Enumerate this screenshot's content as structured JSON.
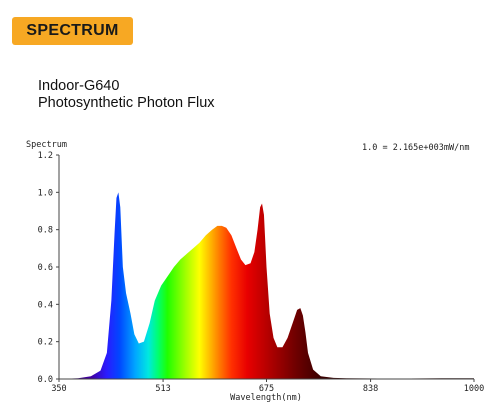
{
  "badge": {
    "label": "SPECTRUM",
    "color": "#f7a823"
  },
  "header": {
    "title_line1": "Indoor-G640",
    "title_line2": "Photosynthetic Photon Flux"
  },
  "chart_data": {
    "type": "area",
    "ylabel": "Spectrum",
    "xlabel": "Wavelength(nm)",
    "annotation": "1.0 = 2.165e+003mW/nm",
    "xlim": [
      350,
      1000
    ],
    "ylim": [
      0,
      1.2
    ],
    "x_ticks": [
      350,
      513,
      675,
      838,
      1000
    ],
    "y_ticks": [
      0.0,
      0.2,
      0.4,
      0.6,
      0.8,
      1.0,
      1.2
    ],
    "y_tick_labels": [
      "0.0",
      "0.2",
      "0.4",
      "0.6",
      "0.8",
      "1.0",
      "1.2"
    ],
    "grid": false,
    "series": [
      {
        "x": [
          350,
          380,
          400,
          415,
          425,
          432,
          437,
          440,
          443,
          446,
          450,
          455,
          462,
          468,
          475,
          483,
          492,
          500,
          510,
          520,
          530,
          540,
          550,
          560,
          570,
          580,
          590,
          598,
          605,
          612,
          620,
          628,
          635,
          642,
          650,
          656,
          661,
          665,
          668,
          671,
          675,
          680,
          686,
          692,
          700,
          708,
          716,
          723,
          728,
          732,
          736,
          740,
          748,
          760,
          780,
          800,
          850,
          900,
          950,
          1000
        ],
        "y": [
          0.0,
          0.004,
          0.015,
          0.045,
          0.14,
          0.42,
          0.78,
          0.97,
          1.0,
          0.92,
          0.6,
          0.46,
          0.35,
          0.24,
          0.19,
          0.2,
          0.3,
          0.42,
          0.5,
          0.55,
          0.6,
          0.64,
          0.67,
          0.7,
          0.73,
          0.77,
          0.8,
          0.82,
          0.82,
          0.81,
          0.77,
          0.7,
          0.64,
          0.61,
          0.62,
          0.68,
          0.8,
          0.92,
          0.94,
          0.88,
          0.6,
          0.35,
          0.22,
          0.17,
          0.17,
          0.22,
          0.3,
          0.37,
          0.38,
          0.34,
          0.25,
          0.14,
          0.05,
          0.015,
          0.006,
          0.004,
          0.003,
          0.003,
          0.004,
          0.004
        ]
      }
    ]
  }
}
